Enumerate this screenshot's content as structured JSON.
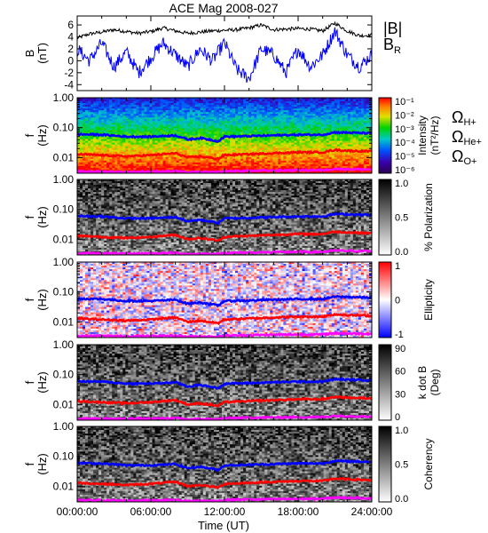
{
  "chart_data": {
    "title": "ACE Mag 2008-027",
    "xlabel": "Time (UT)",
    "xticks": [
      "00:00:00",
      "06:00:00",
      "12:00:00",
      "18:00:00",
      "24:00:00"
    ],
    "xlim_hours": [
      0,
      24
    ],
    "panels": [
      {
        "type": "line",
        "ylabel": [
          "B",
          "(nT)"
        ],
        "ylim": [
          -5,
          7.5
        ],
        "yticks": [
          "6",
          "4",
          "2",
          "0",
          "-2",
          "-4"
        ],
        "legend": [
          "|B|",
          "B_R"
        ],
        "series": [
          {
            "name": "|B|",
            "color": "#000000",
            "x": [
              0,
              1,
              2,
              3,
              4,
              5,
              6,
              7,
              8,
              9,
              10,
              11,
              12,
              13,
              14,
              15,
              16,
              17,
              18,
              19,
              20,
              21,
              22,
              23,
              24
            ],
            "y": [
              3.8,
              4.5,
              4.8,
              5.2,
              4.9,
              4.6,
              4.9,
              5.5,
              5.0,
              4.6,
              4.8,
              5.0,
              5.1,
              5.2,
              5.5,
              6.0,
              5.2,
              5.3,
              5.4,
              5.3,
              5.0,
              6.3,
              5.0,
              4.2,
              4.3
            ]
          },
          {
            "name": "B_R",
            "color": "#0000ff",
            "x": [
              0,
              1,
              2,
              3,
              4,
              5,
              6,
              7,
              8,
              9,
              10,
              11,
              12,
              13,
              14,
              15,
              16,
              17,
              18,
              19,
              20,
              21,
              22,
              23,
              24
            ],
            "y": [
              2.0,
              0.0,
              3.0,
              -1.0,
              1.5,
              -2.0,
              0.5,
              3.0,
              1.0,
              -1.0,
              2.0,
              0.0,
              3.0,
              -1.5,
              -3.0,
              2.0,
              1.0,
              -2.0,
              2.0,
              -1.0,
              1.0,
              5.0,
              1.0,
              -1.0,
              1.0
            ]
          }
        ]
      },
      {
        "type": "heatmap",
        "ylabel": [
          "f",
          "(Hz)"
        ],
        "yscale": "log",
        "ylim": [
          0.003,
          1.0
        ],
        "yticks": [
          "1.00",
          "0.10",
          "0.01"
        ],
        "colorbar_label": [
          "Intensity",
          "(nT²/Hz)"
        ],
        "colorbar_ticks": [
          "10⁻¹",
          "10⁻²",
          "10⁻³",
          "10⁻⁴",
          "10⁻⁵",
          "10⁻⁶"
        ],
        "colorscale": "rainbow"
      },
      {
        "type": "heatmap",
        "ylabel": [
          "f",
          "(Hz)"
        ],
        "yscale": "log",
        "ylim": [
          0.003,
          1.0
        ],
        "yticks": [
          "1.00",
          "0.10",
          "0.01"
        ],
        "colorbar_label": [
          "% Polarization"
        ],
        "colorbar_ticks": [
          "1.0",
          "0.5",
          "0.0"
        ],
        "colorscale": "grayscale"
      },
      {
        "type": "heatmap",
        "ylabel": [
          "f",
          "(Hz)"
        ],
        "yscale": "log",
        "ylim": [
          0.003,
          1.0
        ],
        "yticks": [
          "1.00",
          "0.10",
          "0.01"
        ],
        "colorbar_label": [
          "Ellipticity"
        ],
        "colorbar_ticks": [
          "1",
          "0",
          "-1"
        ],
        "colorscale": "red-white-blue"
      },
      {
        "type": "heatmap",
        "ylabel": [
          "f",
          "(Hz)"
        ],
        "yscale": "log",
        "ylim": [
          0.003,
          1.0
        ],
        "yticks": [
          "1.00",
          "0.10",
          "0.01"
        ],
        "colorbar_label": [
          "k dot B",
          "(Deg)"
        ],
        "colorbar_ticks": [
          "90",
          "60",
          "30",
          "0"
        ],
        "colorscale": "grayscale"
      },
      {
        "type": "heatmap",
        "ylabel": [
          "f",
          "(Hz)"
        ],
        "yscale": "log",
        "ylim": [
          0.003,
          1.0
        ],
        "yticks": [
          "1.00",
          "0.10",
          "0.01"
        ],
        "colorbar_label": [
          "Coherency"
        ],
        "colorbar_ticks": [
          "1.0",
          "0.5",
          "0.0"
        ],
        "colorscale": "grayscale"
      }
    ],
    "overlay_lines": [
      {
        "name": "Ω_H+",
        "color": "#0000ff",
        "x": [
          0,
          2,
          4,
          6,
          8,
          9,
          10,
          11.5,
          12,
          14,
          16,
          18,
          20,
          21,
          22,
          24
        ],
        "y": [
          0.06,
          0.058,
          0.05,
          0.05,
          0.055,
          0.04,
          0.045,
          0.035,
          0.05,
          0.052,
          0.055,
          0.058,
          0.058,
          0.07,
          0.068,
          0.065
        ]
      },
      {
        "name": "Ω_He+",
        "color": "#ff0000",
        "x": [
          0,
          2,
          4,
          6,
          8,
          9,
          10,
          11.5,
          12,
          14,
          16,
          18,
          20,
          21,
          22,
          24
        ],
        "y": [
          0.013,
          0.012,
          0.011,
          0.012,
          0.014,
          0.01,
          0.011,
          0.009,
          0.012,
          0.013,
          0.014,
          0.015,
          0.015,
          0.018,
          0.017,
          0.016
        ]
      },
      {
        "name": "Ω_O+",
        "color": "#ff00ff",
        "x": [
          0,
          2,
          4,
          6,
          8,
          9,
          10,
          11.5,
          12,
          14,
          16,
          18,
          20,
          21,
          22,
          24
        ],
        "y": [
          0.0034,
          0.0034,
          0.0033,
          0.0034,
          0.0035,
          0.0032,
          0.0033,
          0.0032,
          0.0035,
          0.0036,
          0.0037,
          0.0038,
          0.0038,
          0.0042,
          0.0041,
          0.004
        ]
      }
    ]
  }
}
